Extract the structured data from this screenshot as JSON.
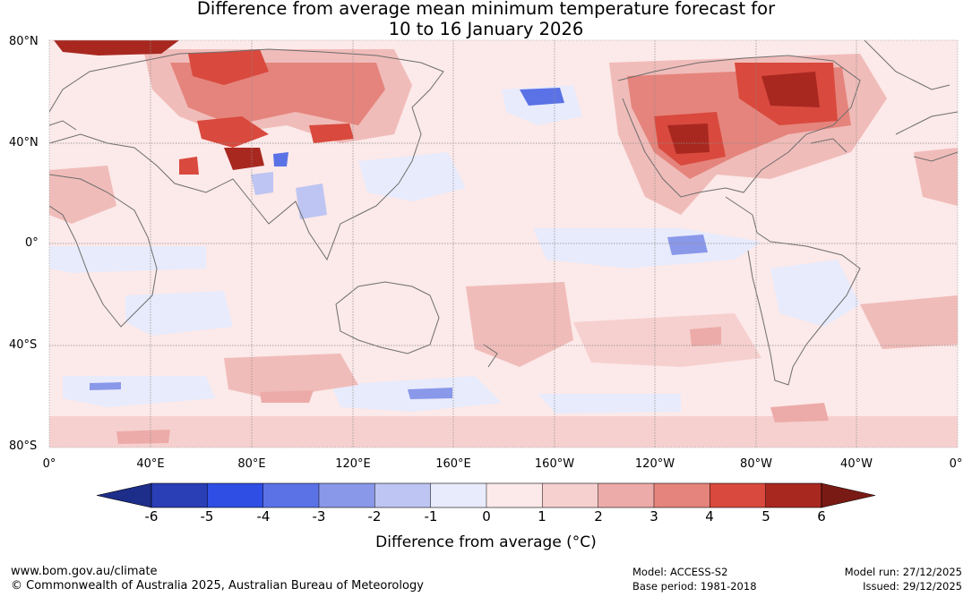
{
  "title": {
    "line1": "Difference from average mean minimum temperature forecast for",
    "line2": "10 to 16 January 2026"
  },
  "map": {
    "lat_labels": [
      "80°N",
      "40°N",
      "0°",
      "40°S",
      "80°S"
    ],
    "lon_labels": [
      "0°",
      "40°E",
      "80°E",
      "120°E",
      "160°E",
      "160°W",
      "120°W",
      "80°W",
      "40°W",
      "0°"
    ]
  },
  "colorbar": {
    "ticks": [
      "-6",
      "-5",
      "-4",
      "-3",
      "-2",
      "-1",
      "0",
      "1",
      "2",
      "3",
      "4",
      "5",
      "6"
    ],
    "colors": [
      "#1d2d8a",
      "#2a3eb5",
      "#2f4ee3",
      "#5a72e6",
      "#8a98ea",
      "#bec5f2",
      "#e8ebfb",
      "#fce9e9",
      "#f6d0cf",
      "#ecaba8",
      "#e5847c",
      "#d9493d",
      "#a82820",
      "#7a1a14"
    ],
    "label": "Difference from average (°C)"
  },
  "footer": {
    "website": "www.bom.gov.au/climate",
    "copyright": "© Commonwealth of Australia 2025, Australian Bureau of Meteorology",
    "model": "Model: ACCESS-S2",
    "base_period": "Base period: 1981-2018",
    "model_run": "Model run: 27/12/2025",
    "issued": "Issued: 29/12/2025"
  }
}
